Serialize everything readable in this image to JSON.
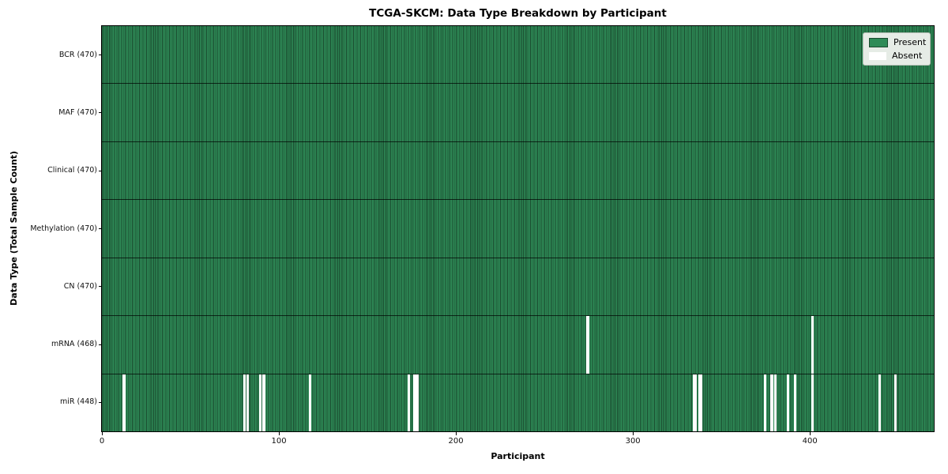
{
  "title": "TCGA-SKCM: Data Type Breakdown by Participant",
  "xlabel": "Participant",
  "ylabel": "Data Type (Total Sample Count)",
  "legend": {
    "present_label": "Present",
    "absent_label": "Absent"
  },
  "colors": {
    "present": "#2e8b57",
    "cell_edge": "#1a4a2e",
    "absent": "#ffffff",
    "row_divider": "rgba(0,0,0,0.7)",
    "legend_bg": "#e6ece6"
  },
  "chart_data": {
    "type": "heatmap",
    "title": "TCGA-SKCM: Data Type Breakdown by Participant",
    "xlabel": "Participant",
    "ylabel": "Data Type (Total Sample Count)",
    "n_participants": 470,
    "x_ticks": [
      0,
      100,
      200,
      300,
      400
    ],
    "x_range": [
      0,
      470
    ],
    "legend_entries": [
      "Present",
      "Absent"
    ],
    "legend_position": "upper right",
    "grid": false,
    "rows": [
      {
        "label": "BCR (470)",
        "data_type": "BCR",
        "present_count": 470,
        "absent_participants": []
      },
      {
        "label": "MAF (470)",
        "data_type": "MAF",
        "present_count": 470,
        "absent_participants": []
      },
      {
        "label": "Clinical (470)",
        "data_type": "Clinical",
        "present_count": 470,
        "absent_participants": []
      },
      {
        "label": "Methylation (470)",
        "data_type": "Methylation",
        "present_count": 470,
        "absent_participants": []
      },
      {
        "label": "CN (470)",
        "data_type": "CN",
        "present_count": 470,
        "absent_participants": []
      },
      {
        "label": "mRNA (468)",
        "data_type": "mRNA",
        "present_count": 468,
        "absent_participants": [
          274,
          401
        ]
      },
      {
        "label": "miR (448)",
        "data_type": "miR",
        "present_count": 448,
        "absent_participants": [
          12,
          80,
          82,
          89,
          91,
          117,
          173,
          176,
          177,
          178,
          334,
          335,
          337,
          338,
          374,
          378,
          380,
          387,
          391,
          401,
          439,
          448
        ]
      }
    ]
  }
}
